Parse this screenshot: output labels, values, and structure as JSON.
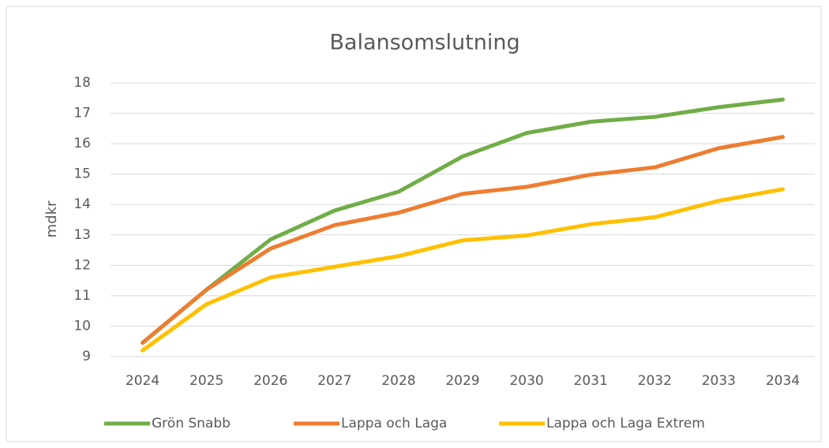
{
  "chart_data": {
    "type": "line",
    "title": "Balansomslutning",
    "y_label": "mdkr",
    "categories": [
      "2024",
      "2025",
      "2026",
      "2027",
      "2028",
      "2029",
      "2030",
      "2031",
      "2032",
      "2033",
      "2034"
    ],
    "series": [
      {
        "name": "Grön Snabb",
        "color": "#70ad47",
        "values": [
          9.45,
          11.2,
          12.85,
          13.8,
          14.42,
          15.58,
          16.35,
          16.72,
          16.88,
          17.2,
          17.45
        ]
      },
      {
        "name": "Lappa och Laga",
        "color": "#ed7d31",
        "values": [
          9.45,
          11.2,
          12.55,
          13.32,
          13.73,
          14.35,
          14.58,
          14.98,
          15.22,
          15.85,
          16.22
        ]
      },
      {
        "name": "Lappa och Laga Extrem",
        "color": "#ffc000",
        "values": [
          9.2,
          10.72,
          11.6,
          11.95,
          12.3,
          12.82,
          12.98,
          13.35,
          13.58,
          14.12,
          14.5
        ]
      }
    ],
    "ylim": [
      9,
      18
    ],
    "yticks": [
      9,
      10,
      11,
      12,
      13,
      14,
      15,
      16,
      17,
      18
    ],
    "grid": true,
    "legend": "bottom"
  }
}
